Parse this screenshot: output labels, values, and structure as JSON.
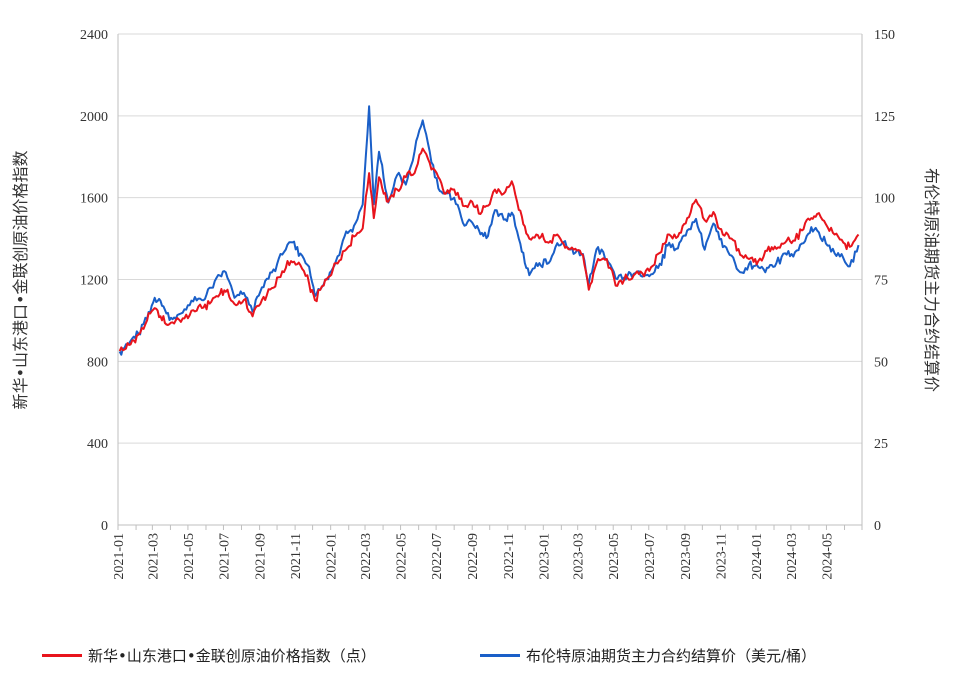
{
  "chart_data": {
    "type": "line",
    "x_tick_labels": [
      "2021-01",
      "2021-03",
      "2021-05",
      "2021-07",
      "2021-09",
      "2021-11",
      "2022-01",
      "2022-03",
      "2022-05",
      "2022-07",
      "2022-09",
      "2022-11",
      "2023-01",
      "2023-03",
      "2023-05",
      "2023-07",
      "2023-09",
      "2023-11",
      "2024-01",
      "2024-03",
      "2024-05"
    ],
    "y_left": {
      "label": "新华•山东港口•金联创原油价格指数",
      "ticks": [
        "0",
        "400",
        "800",
        "1200",
        "1600",
        "2000",
        "2400"
      ],
      "range": [
        0,
        2400
      ]
    },
    "y_right": {
      "label": "布伦特原油期货主力合约结算价",
      "ticks": [
        "0",
        "25",
        "50",
        "75",
        "100",
        "125",
        "150"
      ],
      "range": [
        0,
        150
      ]
    },
    "grid": "horizontal",
    "legend_position": "bottom",
    "series": [
      {
        "name": "新华•山东港口•金联创原油价格指数（点）",
        "axis": "left",
        "color": "#e8141c",
        "points": [
          [
            "2021-01-04",
            850
          ],
          [
            "2021-01-20",
            880
          ],
          [
            "2021-02-05",
            930
          ],
          [
            "2021-02-20",
            1000
          ],
          [
            "2021-03-05",
            1060
          ],
          [
            "2021-03-15",
            1020
          ],
          [
            "2021-03-25",
            980
          ],
          [
            "2021-04-10",
            1000
          ],
          [
            "2021-04-25",
            1010
          ],
          [
            "2021-05-10",
            1050
          ],
          [
            "2021-05-25",
            1060
          ],
          [
            "2021-06-10",
            1090
          ],
          [
            "2021-06-25",
            1130
          ],
          [
            "2021-07-05",
            1140
          ],
          [
            "2021-07-20",
            1080
          ],
          [
            "2021-08-05",
            1100
          ],
          [
            "2021-08-20",
            1020
          ],
          [
            "2021-09-05",
            1100
          ],
          [
            "2021-09-25",
            1160
          ],
          [
            "2021-10-10",
            1240
          ],
          [
            "2021-10-25",
            1290
          ],
          [
            "2021-11-10",
            1270
          ],
          [
            "2021-11-25",
            1180
          ],
          [
            "2021-12-05",
            1100
          ],
          [
            "2021-12-20",
            1170
          ],
          [
            "2022-01-10",
            1280
          ],
          [
            "2022-01-25",
            1340
          ],
          [
            "2022-02-10",
            1410
          ],
          [
            "2022-02-25",
            1450
          ],
          [
            "2022-03-08",
            1720
          ],
          [
            "2022-03-16",
            1500
          ],
          [
            "2022-03-25",
            1700
          ],
          [
            "2022-04-10",
            1580
          ],
          [
            "2022-04-25",
            1640
          ],
          [
            "2022-05-10",
            1700
          ],
          [
            "2022-05-25",
            1720
          ],
          [
            "2022-06-08",
            1840
          ],
          [
            "2022-06-20",
            1770
          ],
          [
            "2022-07-05",
            1700
          ],
          [
            "2022-07-15",
            1620
          ],
          [
            "2022-08-01",
            1640
          ],
          [
            "2022-08-16",
            1560
          ],
          [
            "2022-09-01",
            1580
          ],
          [
            "2022-09-15",
            1520
          ],
          [
            "2022-09-28",
            1560
          ],
          [
            "2022-10-10",
            1640
          ],
          [
            "2022-10-25",
            1620
          ],
          [
            "2022-11-08",
            1680
          ],
          [
            "2022-11-20",
            1540
          ],
          [
            "2022-12-08",
            1400
          ],
          [
            "2022-12-20",
            1420
          ],
          [
            "2023-01-10",
            1380
          ],
          [
            "2023-01-25",
            1420
          ],
          [
            "2023-02-10",
            1360
          ],
          [
            "2023-02-25",
            1350
          ],
          [
            "2023-03-10",
            1320
          ],
          [
            "2023-03-20",
            1150
          ],
          [
            "2023-04-05",
            1300
          ],
          [
            "2023-04-20",
            1300
          ],
          [
            "2023-05-05",
            1170
          ],
          [
            "2023-05-20",
            1200
          ],
          [
            "2023-06-05",
            1220
          ],
          [
            "2023-06-20",
            1230
          ],
          [
            "2023-07-05",
            1260
          ],
          [
            "2023-07-20",
            1330
          ],
          [
            "2023-08-05",
            1420
          ],
          [
            "2023-08-20",
            1410
          ],
          [
            "2023-09-05",
            1500
          ],
          [
            "2023-09-20",
            1590
          ],
          [
            "2023-10-05",
            1490
          ],
          [
            "2023-10-20",
            1530
          ],
          [
            "2023-11-05",
            1420
          ],
          [
            "2023-11-20",
            1400
          ],
          [
            "2023-12-05",
            1320
          ],
          [
            "2023-12-20",
            1300
          ],
          [
            "2024-01-05",
            1290
          ],
          [
            "2024-01-20",
            1340
          ],
          [
            "2024-02-05",
            1350
          ],
          [
            "2024-02-20",
            1380
          ],
          [
            "2024-03-05",
            1390
          ],
          [
            "2024-03-20",
            1440
          ],
          [
            "2024-04-05",
            1500
          ],
          [
            "2024-04-15",
            1520
          ],
          [
            "2024-04-30",
            1470
          ],
          [
            "2024-05-15",
            1420
          ],
          [
            "2024-05-30",
            1380
          ],
          [
            "2024-06-10",
            1360
          ],
          [
            "2024-06-25",
            1420
          ]
        ]
      },
      {
        "name": "布伦特原油期货主力合约结算价（美元/桶）",
        "axis": "right",
        "color": "#1a5fc8",
        "points": [
          [
            "2021-01-04",
            53
          ],
          [
            "2021-01-20",
            55.5
          ],
          [
            "2021-02-05",
            58.5
          ],
          [
            "2021-02-20",
            62.9
          ],
          [
            "2021-03-05",
            69.4
          ],
          [
            "2021-03-15",
            68.5
          ],
          [
            "2021-03-25",
            64.6
          ],
          [
            "2021-04-10",
            63
          ],
          [
            "2021-04-25",
            65.9
          ],
          [
            "2021-05-10",
            68.3
          ],
          [
            "2021-05-25",
            68.7
          ],
          [
            "2021-06-10",
            72.5
          ],
          [
            "2021-06-25",
            76.2
          ],
          [
            "2021-07-05",
            77.2
          ],
          [
            "2021-07-20",
            69.4
          ],
          [
            "2021-08-05",
            70.9
          ],
          [
            "2021-08-20",
            65.2
          ],
          [
            "2021-09-05",
            72.6
          ],
          [
            "2021-09-25",
            78.1
          ],
          [
            "2021-10-10",
            82.6
          ],
          [
            "2021-10-25",
            86.4
          ],
          [
            "2021-11-10",
            82.9
          ],
          [
            "2021-11-25",
            78.9
          ],
          [
            "2021-12-05",
            69.9
          ],
          [
            "2021-12-20",
            73.5
          ],
          [
            "2022-01-10",
            80.6
          ],
          [
            "2022-01-25",
            88.2
          ],
          [
            "2022-02-10",
            91.4
          ],
          [
            "2022-02-25",
            97.9
          ],
          [
            "2022-03-08",
            127.9
          ],
          [
            "2022-03-16",
            98
          ],
          [
            "2022-03-25",
            114
          ],
          [
            "2022-04-10",
            98.5
          ],
          [
            "2022-04-25",
            106.9
          ],
          [
            "2022-05-10",
            104
          ],
          [
            "2022-05-25",
            114.2
          ],
          [
            "2022-06-08",
            123.6
          ],
          [
            "2022-06-20",
            114.1
          ],
          [
            "2022-07-05",
            102.8
          ],
          [
            "2022-07-15",
            101.2
          ],
          [
            "2022-08-01",
            100
          ],
          [
            "2022-08-16",
            92.3
          ],
          [
            "2022-09-01",
            92.4
          ],
          [
            "2022-09-15",
            88.8
          ],
          [
            "2022-09-28",
            88.3
          ],
          [
            "2022-10-10",
            96.2
          ],
          [
            "2022-10-25",
            93.3
          ],
          [
            "2022-11-08",
            95.4
          ],
          [
            "2022-11-20",
            87.5
          ],
          [
            "2022-12-08",
            76.3
          ],
          [
            "2022-12-20",
            80
          ],
          [
            "2023-01-10",
            80
          ],
          [
            "2023-01-25",
            86.1
          ],
          [
            "2023-02-10",
            85
          ],
          [
            "2023-02-25",
            83.2
          ],
          [
            "2023-03-10",
            82.8
          ],
          [
            "2023-03-20",
            73.8
          ],
          [
            "2023-04-05",
            84.9
          ],
          [
            "2023-04-20",
            81.1
          ],
          [
            "2023-05-05",
            75.3
          ],
          [
            "2023-05-20",
            75.6
          ],
          [
            "2023-06-05",
            76.7
          ],
          [
            "2023-06-20",
            75.9
          ],
          [
            "2023-07-05",
            76.6
          ],
          [
            "2023-07-20",
            79.8
          ],
          [
            "2023-08-05",
            86.2
          ],
          [
            "2023-08-20",
            84.5
          ],
          [
            "2023-09-05",
            90
          ],
          [
            "2023-09-20",
            93.5
          ],
          [
            "2023-10-05",
            84.1
          ],
          [
            "2023-10-20",
            92.1
          ],
          [
            "2023-11-05",
            84.9
          ],
          [
            "2023-11-20",
            82.3
          ],
          [
            "2023-12-05",
            77.2
          ],
          [
            "2023-12-20",
            79.7
          ],
          [
            "2024-01-05",
            78.8
          ],
          [
            "2024-01-20",
            78.6
          ],
          [
            "2024-02-05",
            80
          ],
          [
            "2024-02-20",
            83
          ],
          [
            "2024-03-05",
            82
          ],
          [
            "2024-03-20",
            86
          ],
          [
            "2024-04-05",
            91
          ],
          [
            "2024-04-15",
            90
          ],
          [
            "2024-04-30",
            86
          ],
          [
            "2024-05-15",
            83
          ],
          [
            "2024-05-30",
            81.5
          ],
          [
            "2024-06-10",
            79
          ],
          [
            "2024-06-25",
            85.5
          ]
        ]
      }
    ]
  }
}
